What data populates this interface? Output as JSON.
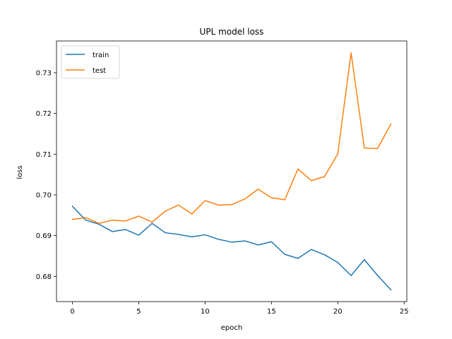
{
  "chart_data": {
    "type": "line",
    "title": "UPL model loss",
    "xlabel": "epoch",
    "ylabel": "loss",
    "x": [
      0,
      1,
      2,
      3,
      4,
      5,
      6,
      7,
      8,
      9,
      10,
      11,
      12,
      13,
      14,
      15,
      16,
      17,
      18,
      19,
      20,
      21,
      22,
      23,
      24
    ],
    "series": [
      {
        "name": "train",
        "color": "#1f77b4",
        "values": [
          0.6972,
          0.6938,
          0.6928,
          0.691,
          0.6915,
          0.6901,
          0.693,
          0.6907,
          0.6903,
          0.6897,
          0.6902,
          0.6891,
          0.6884,
          0.6887,
          0.6877,
          0.6885,
          0.6854,
          0.6844,
          0.6866,
          0.6853,
          0.6834,
          0.6802,
          0.6841,
          0.6802,
          0.6767
        ]
      },
      {
        "name": "test",
        "color": "#ff7f0e",
        "values": [
          0.694,
          0.6944,
          0.693,
          0.6938,
          0.6936,
          0.6948,
          0.6933,
          0.696,
          0.6975,
          0.6953,
          0.6986,
          0.6975,
          0.6976,
          0.699,
          0.7014,
          0.6993,
          0.6988,
          0.7064,
          0.7035,
          0.7045,
          0.7101,
          0.7349,
          0.7115,
          0.7114,
          0.7174
        ]
      }
    ],
    "xlim": [
      -1.2,
      25.2
    ],
    "ylim": [
      0.6738,
      0.7378
    ],
    "xticks": [
      0,
      5,
      10,
      15,
      20,
      25
    ],
    "yticks": [
      0.68,
      0.69,
      0.7,
      0.71,
      0.72,
      0.73
    ],
    "xtick_labels": [
      "0",
      "5",
      "10",
      "15",
      "20",
      "25"
    ],
    "ytick_labels": [
      "0.68",
      "0.69",
      "0.70",
      "0.71",
      "0.72",
      "0.73"
    ],
    "legend": "upper-left",
    "grid": false
  }
}
